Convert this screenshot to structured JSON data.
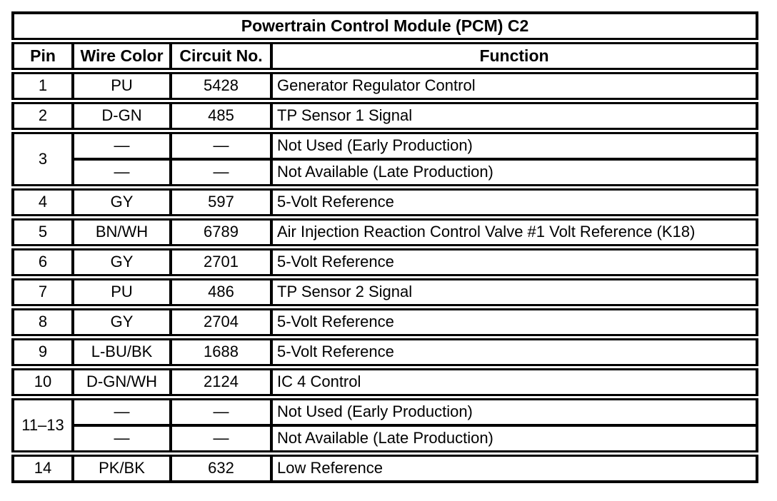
{
  "page": {
    "background": "#ffffff",
    "border_color": "#000000",
    "text_color": "#000000"
  },
  "table": {
    "title": "Powertrain Control Module (PCM) C2",
    "columns": [
      "Pin",
      "Wire Color",
      "Circuit No.",
      "Function"
    ],
    "rows": [
      {
        "pin": "1",
        "wire": "PU",
        "circuit": "5428",
        "fn": "Generator Regulator Control"
      },
      {
        "pin": "2",
        "wire": "D-GN",
        "circuit": "485",
        "fn": "TP Sensor 1 Signal"
      },
      {
        "pin": "3",
        "wire": "—",
        "circuit": "—",
        "fn": "Not Used (Early Production)"
      },
      {
        "wire": "—",
        "circuit": "—",
        "fn": "Not Available (Late Production)"
      },
      {
        "pin": "4",
        "wire": "GY",
        "circuit": "597",
        "fn": "5-Volt Reference"
      },
      {
        "pin": "5",
        "wire": "BN/WH",
        "circuit": "6789",
        "fn": "Air Injection Reaction Control Valve #1 Volt Reference (K18)"
      },
      {
        "pin": "6",
        "wire": "GY",
        "circuit": "2701",
        "fn": "5-Volt Reference"
      },
      {
        "pin": "7",
        "wire": "PU",
        "circuit": "486",
        "fn": "TP Sensor 2 Signal"
      },
      {
        "pin": "8",
        "wire": "GY",
        "circuit": "2704",
        "fn": "5-Volt Reference"
      },
      {
        "pin": "9",
        "wire": "L-BU/BK",
        "circuit": "1688",
        "fn": "5-Volt Reference"
      },
      {
        "pin": "10",
        "wire": "D-GN/WH",
        "circuit": "2124",
        "fn": "IC 4 Control"
      },
      {
        "pin": "11–13",
        "wire": "—",
        "circuit": "—",
        "fn": "Not Used (Early Production)"
      },
      {
        "wire": "—",
        "circuit": "—",
        "fn": "Not Available (Late Production)"
      },
      {
        "pin": "14",
        "wire": "PK/BK",
        "circuit": "632",
        "fn": "Low Reference"
      }
    ]
  }
}
